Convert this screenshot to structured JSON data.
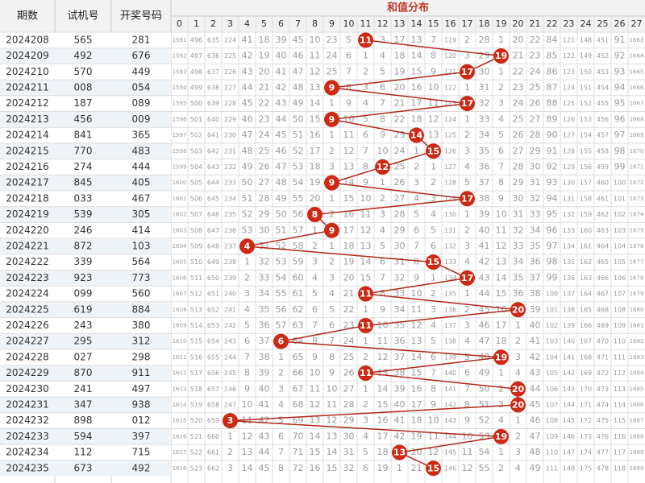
{
  "header": {
    "period": "期数",
    "test": "试机号",
    "draw": "开奖号码",
    "sum_title": "和值分布"
  },
  "columns": [
    0,
    1,
    2,
    3,
    4,
    5,
    6,
    7,
    8,
    9,
    10,
    11,
    12,
    13,
    14,
    15,
    16,
    17,
    18,
    19,
    20,
    21,
    22,
    23,
    24,
    25,
    26,
    27
  ],
  "hit_color": "#cc2a14",
  "line_color": "#b0281a",
  "rows": [
    {
      "period": "2024208",
      "test": "565",
      "draw": "281",
      "draw_color": "#333333",
      "sum": 11,
      "omit": [
        1591,
        496,
        635,
        224,
        41,
        18,
        39,
        45,
        10,
        23,
        5,
        null,
        3,
        17,
        13,
        7,
        119,
        2,
        28,
        1,
        20,
        22,
        84,
        121,
        148,
        451,
        91,
        1663
      ]
    },
    {
      "period": "2024209",
      "test": "492",
      "draw": "676",
      "draw_color": "#b8242a",
      "sum": 19,
      "omit": [
        1592,
        497,
        636,
        225,
        42,
        19,
        40,
        46,
        11,
        24,
        6,
        1,
        4,
        18,
        14,
        8,
        120,
        3,
        29,
        null,
        21,
        23,
        85,
        122,
        149,
        452,
        92,
        1664
      ]
    },
    {
      "period": "2024210",
      "test": "570",
      "draw": "449",
      "draw_color": "#b8242a",
      "sum": 17,
      "omit": [
        1593,
        498,
        637,
        226,
        43,
        20,
        41,
        47,
        12,
        25,
        7,
        2,
        5,
        19,
        15,
        9,
        121,
        null,
        30,
        1,
        22,
        24,
        86,
        123,
        150,
        453,
        93,
        1665
      ]
    },
    {
      "period": "2024211",
      "test": "008",
      "draw": "054",
      "draw_color": "#333333",
      "sum": 9,
      "omit": [
        1594,
        499,
        638,
        227,
        44,
        21,
        42,
        48,
        13,
        null,
        8,
        3,
        6,
        20,
        16,
        10,
        122,
        1,
        31,
        2,
        23,
        25,
        87,
        124,
        151,
        454,
        94,
        1666
      ]
    },
    {
      "period": "2024212",
      "test": "187",
      "draw": "089",
      "draw_color": "#333333",
      "sum": 17,
      "omit": [
        1595,
        500,
        639,
        228,
        45,
        22,
        43,
        49,
        14,
        1,
        9,
        4,
        7,
        21,
        17,
        11,
        123,
        null,
        32,
        3,
        24,
        26,
        88,
        125,
        152,
        455,
        95,
        1667
      ]
    },
    {
      "period": "2024213",
      "test": "456",
      "draw": "009",
      "draw_color": "#b8242a",
      "sum": 9,
      "omit": [
        1596,
        501,
        640,
        229,
        46,
        23,
        44,
        50,
        15,
        null,
        10,
        5,
        8,
        22,
        18,
        12,
        124,
        1,
        33,
        4,
        25,
        27,
        89,
        126,
        153,
        456,
        96,
        1668
      ]
    },
    {
      "period": "2024214",
      "test": "841",
      "draw": "365",
      "draw_color": "#333333",
      "sum": 14,
      "omit": [
        1597,
        502,
        641,
        230,
        47,
        24,
        45,
        51,
        16,
        1,
        11,
        6,
        9,
        23,
        null,
        13,
        125,
        2,
        34,
        5,
        26,
        28,
        90,
        127,
        154,
        457,
        97,
        1669
      ]
    },
    {
      "period": "2024215",
      "test": "770",
      "draw": "483",
      "draw_color": "#333333",
      "sum": 15,
      "omit": [
        1598,
        503,
        642,
        231,
        48,
        25,
        46,
        52,
        17,
        2,
        12,
        7,
        10,
        24,
        1,
        null,
        126,
        3,
        35,
        6,
        27,
        29,
        91,
        128,
        155,
        458,
        98,
        1670
      ]
    },
    {
      "period": "2024216",
      "test": "274",
      "draw": "444",
      "draw_color": "#b8242a",
      "sum": 12,
      "omit": [
        1599,
        504,
        643,
        232,
        49,
        26,
        47,
        53,
        18,
        3,
        13,
        8,
        null,
        25,
        2,
        1,
        127,
        4,
        36,
        7,
        28,
        30,
        92,
        129,
        156,
        459,
        99,
        1671
      ]
    },
    {
      "period": "2024217",
      "test": "845",
      "draw": "405",
      "draw_color": "#333333",
      "sum": 9,
      "omit": [
        1600,
        505,
        644,
        233,
        50,
        27,
        48,
        54,
        19,
        null,
        14,
        9,
        1,
        26,
        3,
        2,
        128,
        5,
        37,
        8,
        29,
        31,
        93,
        130,
        157,
        460,
        100,
        1672
      ]
    },
    {
      "period": "2024218",
      "test": "033",
      "draw": "467",
      "draw_color": "#333333",
      "sum": 17,
      "omit": [
        1601,
        506,
        645,
        234,
        51,
        28,
        49,
        55,
        20,
        1,
        15,
        10,
        2,
        27,
        4,
        3,
        129,
        null,
        38,
        9,
        30,
        32,
        94,
        131,
        158,
        461,
        101,
        1673
      ]
    },
    {
      "period": "2024219",
      "test": "539",
      "draw": "305",
      "draw_color": "#333333",
      "sum": 8,
      "omit": [
        1602,
        507,
        646,
        235,
        52,
        29,
        50,
        56,
        null,
        2,
        16,
        11,
        3,
        28,
        5,
        4,
        130,
        1,
        39,
        10,
        31,
        33,
        95,
        132,
        159,
        462,
        102,
        1674
      ]
    },
    {
      "period": "2024220",
      "test": "246",
      "draw": "414",
      "draw_color": "#b8242a",
      "sum": 9,
      "omit": [
        1603,
        508,
        647,
        236,
        53,
        30,
        51,
        57,
        1,
        null,
        17,
        12,
        4,
        29,
        6,
        5,
        131,
        2,
        40,
        11,
        32,
        34,
        96,
        133,
        160,
        463,
        103,
        1675
      ]
    },
    {
      "period": "2024221",
      "test": "872",
      "draw": "103",
      "draw_color": "#333333",
      "sum": 4,
      "omit": [
        1604,
        509,
        648,
        237,
        null,
        31,
        52,
        58,
        2,
        1,
        18,
        13,
        5,
        30,
        7,
        6,
        132,
        3,
        41,
        12,
        33,
        35,
        97,
        134,
        161,
        464,
        104,
        1676
      ]
    },
    {
      "period": "2024222",
      "test": "339",
      "draw": "564",
      "draw_color": "#333333",
      "sum": 15,
      "omit": [
        1605,
        510,
        649,
        238,
        1,
        32,
        53,
        59,
        3,
        2,
        19,
        14,
        6,
        31,
        8,
        null,
        133,
        4,
        42,
        13,
        34,
        36,
        98,
        135,
        162,
        465,
        105,
        1677
      ]
    },
    {
      "period": "2024223",
      "test": "923",
      "draw": "773",
      "draw_color": "#b8242a",
      "sum": 17,
      "omit": [
        1606,
        511,
        650,
        239,
        2,
        33,
        54,
        60,
        4,
        3,
        20,
        15,
        7,
        32,
        9,
        1,
        134,
        null,
        43,
        14,
        35,
        37,
        99,
        136,
        163,
        466,
        106,
        1678
      ]
    },
    {
      "period": "2024224",
      "test": "099",
      "draw": "560",
      "draw_color": "#333333",
      "sum": 11,
      "omit": [
        1607,
        512,
        651,
        240,
        3,
        34,
        55,
        61,
        5,
        4,
        21,
        null,
        8,
        33,
        10,
        2,
        135,
        1,
        44,
        15,
        36,
        38,
        100,
        137,
        164,
        467,
        107,
        1679
      ]
    },
    {
      "period": "2024225",
      "test": "619",
      "draw": "884",
      "draw_color": "#b8242a",
      "sum": 20,
      "omit": [
        1608,
        513,
        652,
        241,
        4,
        35,
        56,
        62,
        6,
        5,
        22,
        1,
        9,
        34,
        11,
        3,
        136,
        2,
        45,
        16,
        null,
        39,
        101,
        138,
        165,
        468,
        108,
        1680
      ]
    },
    {
      "period": "2024226",
      "test": "243",
      "draw": "380",
      "draw_color": "#333333",
      "sum": 11,
      "omit": [
        1609,
        514,
        653,
        242,
        5,
        36,
        57,
        63,
        7,
        6,
        23,
        null,
        10,
        35,
        12,
        4,
        137,
        3,
        46,
        17,
        1,
        40,
        102,
        139,
        166,
        469,
        109,
        1681
      ]
    },
    {
      "period": "2024227",
      "test": "295",
      "draw": "312",
      "draw_color": "#333333",
      "sum": 6,
      "omit": [
        1610,
        515,
        654,
        243,
        6,
        37,
        null,
        64,
        8,
        7,
        24,
        1,
        11,
        36,
        13,
        5,
        138,
        4,
        47,
        18,
        2,
        41,
        103,
        140,
        167,
        470,
        110,
        1682
      ]
    },
    {
      "period": "2024228",
      "test": "027",
      "draw": "298",
      "draw_color": "#333333",
      "sum": 19,
      "omit": [
        1611,
        516,
        655,
        244,
        7,
        38,
        1,
        65,
        9,
        8,
        25,
        2,
        12,
        37,
        14,
        6,
        139,
        5,
        48,
        null,
        3,
        42,
        104,
        141,
        168,
        471,
        111,
        1683
      ]
    },
    {
      "period": "2024229",
      "test": "870",
      "draw": "911",
      "draw_color": "#b8242a",
      "sum": 11,
      "omit": [
        1612,
        517,
        656,
        245,
        8,
        39,
        2,
        66,
        10,
        9,
        26,
        null,
        13,
        38,
        15,
        7,
        140,
        6,
        49,
        1,
        4,
        43,
        105,
        142,
        169,
        472,
        112,
        1684
      ]
    },
    {
      "period": "2024230",
      "test": "241",
      "draw": "497",
      "draw_color": "#333333",
      "sum": 20,
      "omit": [
        1613,
        518,
        657,
        246,
        9,
        40,
        3,
        67,
        11,
        10,
        27,
        1,
        14,
        39,
        16,
        8,
        141,
        7,
        50,
        2,
        null,
        44,
        106,
        143,
        170,
        473,
        113,
        1685
      ]
    },
    {
      "period": "2024231",
      "test": "347",
      "draw": "938",
      "draw_color": "#333333",
      "sum": 20,
      "omit": [
        1614,
        519,
        658,
        247,
        10,
        41,
        4,
        68,
        12,
        11,
        28,
        2,
        15,
        40,
        17,
        9,
        142,
        8,
        51,
        3,
        null,
        45,
        107,
        144,
        171,
        474,
        114,
        1686
      ]
    },
    {
      "period": "2024232",
      "test": "898",
      "draw": "012",
      "draw_color": "#333333",
      "sum": 3,
      "omit": [
        1615,
        520,
        659,
        null,
        11,
        42,
        5,
        69,
        13,
        12,
        29,
        3,
        16,
        41,
        18,
        10,
        143,
        9,
        52,
        4,
        1,
        46,
        108,
        145,
        172,
        475,
        115,
        1687
      ]
    },
    {
      "period": "2024233",
      "test": "594",
      "draw": "397",
      "draw_color": "#333333",
      "sum": 19,
      "omit": [
        1616,
        521,
        660,
        1,
        12,
        43,
        6,
        70,
        14,
        13,
        30,
        4,
        17,
        42,
        19,
        11,
        144,
        10,
        53,
        null,
        2,
        47,
        109,
        146,
        173,
        476,
        116,
        1688
      ]
    },
    {
      "period": "2024234",
      "test": "112",
      "draw": "715",
      "draw_color": "#333333",
      "sum": 13,
      "omit": [
        1617,
        522,
        661,
        2,
        13,
        44,
        7,
        71,
        15,
        14,
        31,
        5,
        18,
        null,
        20,
        12,
        145,
        11,
        54,
        1,
        3,
        48,
        110,
        147,
        174,
        477,
        117,
        1689
      ]
    },
    {
      "period": "2024235",
      "test": "673",
      "draw": "492",
      "draw_color": "#333333",
      "sum": 15,
      "omit": [
        1618,
        523,
        662,
        3,
        14,
        45,
        8,
        72,
        16,
        15,
        32,
        6,
        19,
        1,
        21,
        null,
        146,
        12,
        55,
        2,
        4,
        49,
        111,
        148,
        175,
        478,
        118,
        1690
      ]
    }
  ]
}
